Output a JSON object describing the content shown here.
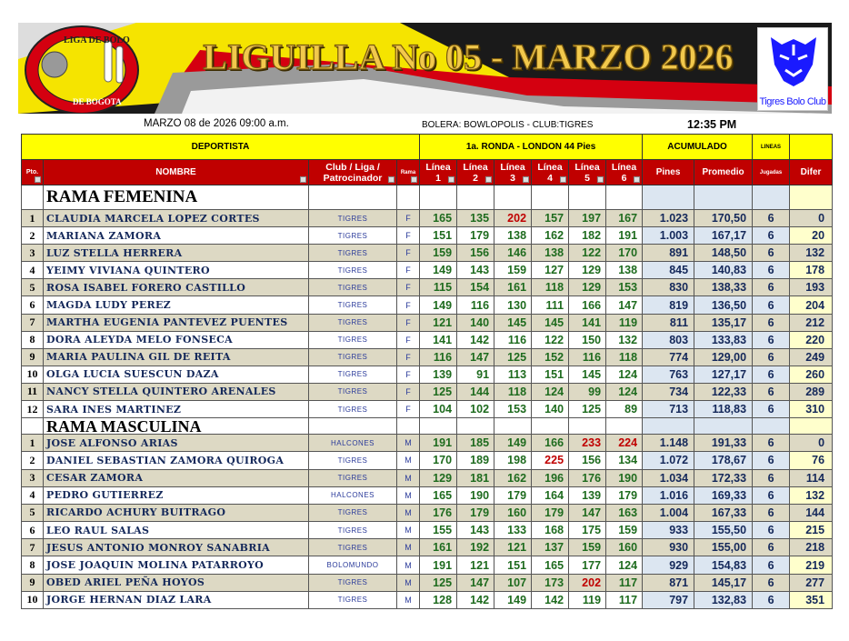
{
  "banner": {
    "title": "LIGUILLA No 05 - MARZO 2026",
    "logo_left": "LIGA DE BOLO DE BOGOTA",
    "logo_right": "Tigres Bolo Club"
  },
  "info": {
    "date": "MARZO 08 de  2026   09:00 a.m.",
    "venue": "BOLERA: BOWLOPOLIS - CLUB:TIGRES",
    "time": "12:35 PM"
  },
  "colors": {
    "header_yellow": "#ffff00",
    "header_red": "#c00000",
    "row_beige": "#ddd9c4",
    "acc_blue": "#dce6f1",
    "difer_yellow": "#ffffcc",
    "score_green": "#1e6b1e",
    "score_high_red": "#c00000",
    "name_navy": "#14285a"
  },
  "header": {
    "deportista": "DEPORTISTA",
    "ronda": "1a. RONDA - LONDON 44 Pies",
    "acumulado": "ACUMULADO",
    "lineas": "LINEAS",
    "pto": "Pto.",
    "nombre": "NOMBRE",
    "club": "Club / Liga / Patrocinador",
    "rama": "Rama",
    "l1": "Línea 1",
    "l2": "Línea 2",
    "l3": "Línea 3",
    "l4": "Línea 4",
    "l5": "Línea 5",
    "l6": "Línea 6",
    "pines": "Pines",
    "promedio": "Promedio",
    "jugadas": "Jugadas",
    "difer": "Difer"
  },
  "sections": [
    {
      "title": "RAMA FEMENINA",
      "rows": [
        [
          "1",
          "CLAUDIA MARCELA LOPEZ CORTES",
          "TIGRES",
          "F",
          165,
          135,
          202,
          157,
          197,
          167,
          "1.023",
          "170,50",
          "6",
          "0"
        ],
        [
          "2",
          "MARIANA ZAMORA",
          "TIGRES",
          "F",
          151,
          179,
          138,
          162,
          182,
          191,
          "1.003",
          "167,17",
          "6",
          "20"
        ],
        [
          "3",
          "LUZ STELLA HERRERA",
          "TIGRES",
          "F",
          159,
          156,
          146,
          138,
          122,
          170,
          "891",
          "148,50",
          "6",
          "132"
        ],
        [
          "4",
          "YEIMY VIVIANA QUINTERO",
          "TIGRES",
          "F",
          149,
          143,
          159,
          127,
          129,
          138,
          "845",
          "140,83",
          "6",
          "178"
        ],
        [
          "5",
          "ROSA ISABEL FORERO CASTILLO",
          "TIGRES",
          "F",
          115,
          154,
          161,
          118,
          129,
          153,
          "830",
          "138,33",
          "6",
          "193"
        ],
        [
          "6",
          "MAGDA LUDY PEREZ",
          "TIGRES",
          "F",
          149,
          116,
          130,
          111,
          166,
          147,
          "819",
          "136,50",
          "6",
          "204"
        ],
        [
          "7",
          "MARTHA EUGENIA PANTEVEZ PUENTES",
          "TIGRES",
          "F",
          121,
          140,
          145,
          145,
          141,
          119,
          "811",
          "135,17",
          "6",
          "212"
        ],
        [
          "8",
          "DORA ALEYDA MELO FONSECA",
          "TIGRES",
          "F",
          141,
          142,
          116,
          122,
          150,
          132,
          "803",
          "133,83",
          "6",
          "220"
        ],
        [
          "9",
          "MARIA PAULINA GIL DE REITA",
          "TIGRES",
          "F",
          116,
          147,
          125,
          152,
          116,
          118,
          "774",
          "129,00",
          "6",
          "249"
        ],
        [
          "10",
          "OLGA LUCIA SUESCUN DAZA",
          "TIGRES",
          "F",
          139,
          91,
          113,
          151,
          145,
          124,
          "763",
          "127,17",
          "6",
          "260"
        ],
        [
          "11",
          "NANCY STELLA QUINTERO ARENALES",
          "TIGRES",
          "F",
          125,
          144,
          118,
          124,
          99,
          124,
          "734",
          "122,33",
          "6",
          "289"
        ],
        [
          "12",
          "SARA INES MARTINEZ",
          "TIGRES",
          "F",
          104,
          102,
          153,
          140,
          125,
          89,
          "713",
          "118,83",
          "6",
          "310"
        ]
      ]
    },
    {
      "title": "RAMA MASCULINA",
      "rows": [
        [
          "1",
          "JOSE ALFONSO ARIAS",
          "HALCONES",
          "M",
          191,
          185,
          149,
          166,
          233,
          224,
          "1.148",
          "191,33",
          "6",
          "0"
        ],
        [
          "2",
          "DANIEL SEBASTIAN ZAMORA QUIROGA",
          "TIGRES",
          "M",
          170,
          189,
          198,
          225,
          156,
          134,
          "1.072",
          "178,67",
          "6",
          "76"
        ],
        [
          "3",
          "CESAR ZAMORA",
          "TIGRES",
          "M",
          129,
          181,
          162,
          196,
          176,
          190,
          "1.034",
          "172,33",
          "6",
          "114"
        ],
        [
          "4",
          "PEDRO GUTIERREZ",
          "HALCONES",
          "M",
          165,
          190,
          179,
          164,
          139,
          179,
          "1.016",
          "169,33",
          "6",
          "132"
        ],
        [
          "5",
          "RICARDO ACHURY BUITRAGO",
          "TIGRES",
          "M",
          176,
          179,
          160,
          179,
          147,
          163,
          "1.004",
          "167,33",
          "6",
          "144"
        ],
        [
          "6",
          "LEO RAUL SALAS",
          "TIGRES",
          "M",
          155,
          143,
          133,
          168,
          175,
          159,
          "933",
          "155,50",
          "6",
          "215"
        ],
        [
          "7",
          "JESUS ANTONIO MONROY SANABRIA",
          "TIGRES",
          "M",
          161,
          192,
          121,
          137,
          159,
          160,
          "930",
          "155,00",
          "6",
          "218"
        ],
        [
          "8",
          "JOSE JOAQUIN MOLINA PATARROYO",
          "BOLOMUNDO",
          "M",
          191,
          121,
          151,
          165,
          177,
          124,
          "929",
          "154,83",
          "6",
          "219"
        ],
        [
          "9",
          "OBED ARIEL PEÑA HOYOS",
          "TIGRES",
          "M",
          125,
          147,
          107,
          173,
          202,
          117,
          "871",
          "145,17",
          "6",
          "277"
        ],
        [
          "10",
          "JORGE HERNAN DIAZ LARA",
          "TIGRES",
          "M",
          128,
          142,
          149,
          142,
          119,
          117,
          "797",
          "132,83",
          "6",
          "351"
        ]
      ]
    }
  ]
}
